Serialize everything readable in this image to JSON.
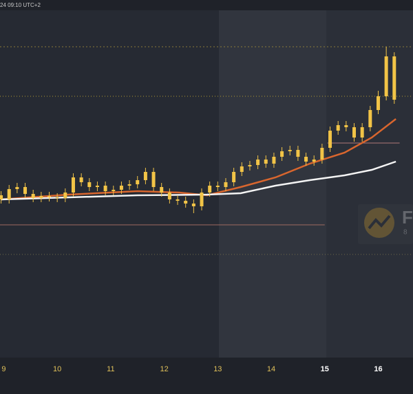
{
  "header": {
    "timestamp": "24 09:10 UTC+2"
  },
  "watermark": {
    "letter": "F",
    "sub": "8"
  },
  "chart_data": {
    "type": "candlestick",
    "color": "#f2c447",
    "xlim": [
      8.93,
      16.65
    ],
    "xticks": [
      9,
      10,
      11,
      12,
      13,
      14,
      15,
      16
    ],
    "highlight_ticks": [
      15,
      16
    ],
    "ylim": [
      0,
      505
    ],
    "x": [
      8.95,
      9.1,
      9.25,
      9.4,
      9.55,
      9.7,
      9.85,
      10.0,
      10.15,
      10.3,
      10.45,
      10.6,
      10.75,
      10.9,
      11.05,
      11.2,
      11.35,
      11.5,
      11.65,
      11.8,
      11.95,
      12.1,
      12.25,
      12.4,
      12.55,
      12.7,
      12.85,
      13.0,
      13.15,
      13.3,
      13.45,
      13.6,
      13.75,
      13.9,
      14.05,
      14.2,
      14.35,
      14.5,
      14.65,
      14.8,
      14.95,
      15.1,
      15.25,
      15.4,
      15.55,
      15.7,
      15.85,
      16.0,
      16.15,
      16.3
    ],
    "open": [
      236,
      230,
      245,
      248,
      238,
      232,
      235,
      233,
      232,
      240,
      262,
      255,
      248,
      250,
      242,
      244,
      250,
      252,
      258,
      270,
      248,
      240,
      230,
      228,
      224,
      220,
      240,
      250,
      248,
      255,
      270,
      278,
      280,
      288,
      282,
      292,
      300,
      302,
      292,
      285,
      288,
      305,
      330,
      338,
      335,
      320,
      335,
      360,
      380,
      438
    ],
    "high": [
      242,
      251,
      254,
      254,
      244,
      241,
      241,
      239,
      246,
      268,
      268,
      261,
      256,
      256,
      250,
      256,
      258,
      264,
      276,
      276,
      254,
      246,
      236,
      234,
      230,
      246,
      256,
      256,
      261,
      276,
      284,
      286,
      294,
      294,
      298,
      306,
      308,
      308,
      298,
      294,
      311,
      336,
      344,
      344,
      341,
      341,
      366,
      388,
      452,
      444
    ],
    "low": [
      224,
      224,
      239,
      232,
      226,
      226,
      227,
      226,
      226,
      234,
      249,
      242,
      242,
      236,
      236,
      238,
      244,
      246,
      252,
      242,
      234,
      224,
      222,
      218,
      210,
      214,
      234,
      242,
      242,
      249,
      264,
      272,
      274,
      276,
      276,
      286,
      294,
      286,
      279,
      279,
      282,
      299,
      324,
      329,
      314,
      314,
      329,
      354,
      374,
      369
    ],
    "close": [
      230,
      245,
      248,
      238,
      232,
      235,
      233,
      232,
      240,
      262,
      255,
      248,
      250,
      242,
      244,
      250,
      252,
      258,
      270,
      248,
      240,
      230,
      228,
      224,
      220,
      240,
      250,
      248,
      255,
      270,
      278,
      280,
      288,
      282,
      292,
      300,
      302,
      292,
      285,
      288,
      305,
      330,
      338,
      335,
      320,
      335,
      360,
      380,
      438,
      375
    ],
    "series": [
      {
        "color": "#d9662e",
        "x": [
          8.95,
          10.22,
          11.5,
          12.28,
          12.8,
          13.43,
          14.08,
          14.72,
          15.37,
          15.88,
          16.33
        ],
        "values": [
          230,
          237,
          242,
          240,
          236,
          248,
          262,
          282,
          298,
          320,
          347
        ]
      },
      {
        "color": "#f4f4f4",
        "x": [
          8.95,
          10.22,
          11.5,
          12.8,
          13.43,
          14.08,
          14.72,
          15.37,
          15.88,
          16.33
        ],
        "values": [
          230,
          233,
          236,
          237,
          239,
          250,
          258,
          265,
          273,
          285
        ]
      }
    ],
    "levels": [
      {
        "value": 452,
        "color": "#8a7a3a",
        "dash": "2 3"
      },
      {
        "value": 380,
        "color": "#b39a33",
        "dash": "1 3"
      },
      {
        "value": 312,
        "color": "#b07a78",
        "dash": "",
        "from": 15.05,
        "to": 16.4
      },
      {
        "value": 193,
        "color": "#a06a60",
        "dash": "",
        "from": 8.93,
        "to": 15.0
      },
      {
        "value": 150,
        "color": "#6e6a4a",
        "dash": "1 3"
      }
    ]
  }
}
